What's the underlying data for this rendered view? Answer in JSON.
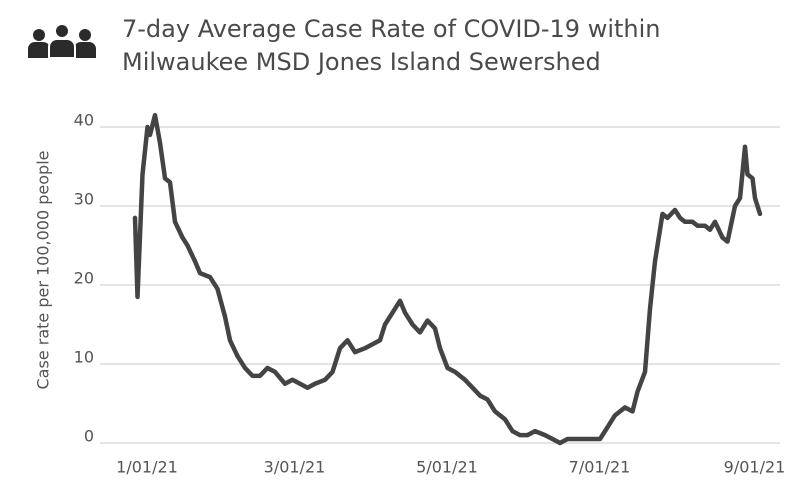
{
  "chart_data": {
    "type": "line",
    "title": [
      "7-day Average Case Rate of COVID-19 within",
      "Milwaukee MSD Jones Island Sewershed"
    ],
    "y_label": "Case rate per 100,000 people",
    "color": "#444444",
    "x": [
      "2021-01-01",
      "2021-01-02",
      "2021-01-04",
      "2021-01-06",
      "2021-01-07",
      "2021-01-09",
      "2021-01-11",
      "2021-01-13",
      "2021-01-15",
      "2021-01-17",
      "2021-01-20",
      "2021-01-22",
      "2021-01-25",
      "2021-01-27",
      "2021-01-31",
      "2021-02-03",
      "2021-02-06",
      "2021-02-08",
      "2021-02-11",
      "2021-02-14",
      "2021-02-17",
      "2021-02-20",
      "2021-02-23",
      "2021-02-26",
      "2021-03-02",
      "2021-03-05",
      "2021-03-08",
      "2021-03-11",
      "2021-03-14",
      "2021-03-18",
      "2021-03-21",
      "2021-03-24",
      "2021-03-27",
      "2021-03-30",
      "2021-04-03",
      "2021-04-06",
      "2021-04-09",
      "2021-04-11",
      "2021-04-14",
      "2021-04-17",
      "2021-04-19",
      "2021-04-22",
      "2021-04-25",
      "2021-04-28",
      "2021-05-01",
      "2021-05-03",
      "2021-05-06",
      "2021-05-09",
      "2021-05-13",
      "2021-05-16",
      "2021-05-19",
      "2021-05-22",
      "2021-05-25",
      "2021-05-29",
      "2021-06-01",
      "2021-06-04",
      "2021-06-07",
      "2021-06-10",
      "2021-06-14",
      "2021-06-17",
      "2021-06-20",
      "2021-06-23",
      "2021-06-26",
      "2021-06-30",
      "2021-07-03",
      "2021-07-06",
      "2021-07-09",
      "2021-07-12",
      "2021-07-16",
      "2021-07-19",
      "2021-07-21",
      "2021-07-24",
      "2021-07-26",
      "2021-07-28",
      "2021-07-31",
      "2021-08-02",
      "2021-08-05",
      "2021-08-07",
      "2021-08-09",
      "2021-08-12",
      "2021-08-14",
      "2021-08-17",
      "2021-08-19",
      "2021-08-21",
      "2021-08-24",
      "2021-08-26",
      "2021-08-29",
      "2021-08-31",
      "2021-09-02",
      "2021-09-03",
      "2021-09-05",
      "2021-09-06",
      "2021-09-08"
    ],
    "values": [
      28.5,
      18.5,
      34,
      40,
      39,
      41.5,
      38,
      33.5,
      33,
      28,
      26,
      25,
      23,
      21.5,
      21,
      19.5,
      16,
      13,
      11,
      9.5,
      8.5,
      8.5,
      9.5,
      9,
      7.5,
      8,
      7.5,
      7,
      7.5,
      8,
      9,
      12,
      13,
      11.5,
      12,
      12.5,
      13,
      15,
      16.5,
      18,
      16.5,
      15,
      14,
      15.5,
      14.5,
      12,
      9.5,
      9,
      8,
      7,
      6,
      5.5,
      4,
      3,
      1.5,
      1,
      1,
      1.5,
      1,
      0.5,
      0,
      0.5,
      0.5,
      0.5,
      0.5,
      0.5,
      2,
      3.5,
      4.5,
      4,
      6.5,
      9,
      17,
      23,
      29,
      28.5,
      29.5,
      28.5,
      28,
      28,
      27.5,
      27.5,
      27,
      28,
      26,
      25.5,
      30,
      31,
      37.5,
      34,
      33.5,
      31,
      29
    ],
    "xlim": [
      "2020-12-18",
      "2021-09-16"
    ],
    "xticks": [
      {
        "value": "2021-01-01",
        "label": "1/01/21"
      },
      {
        "value": "2021-03-01",
        "label": "3/01/21"
      },
      {
        "value": "2021-05-01",
        "label": "5/01/21"
      },
      {
        "value": "2021-07-01",
        "label": "7/01/21"
      },
      {
        "value": "2021-09-01",
        "label": "9/01/21"
      }
    ],
    "ylim": [
      -1.5,
      42.5
    ],
    "yticks": [
      0,
      10,
      20,
      30,
      40
    ],
    "grid": true
  }
}
